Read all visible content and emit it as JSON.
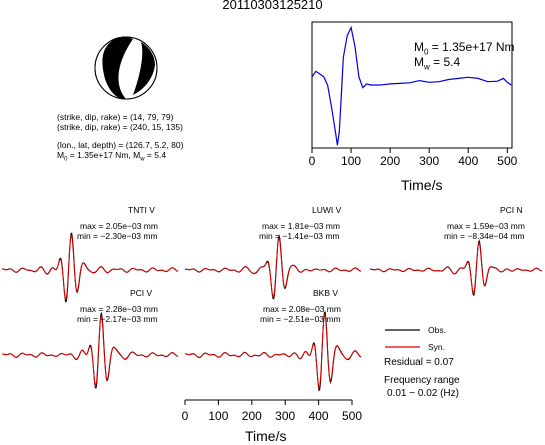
{
  "event_id": "20110303125210",
  "focal": {
    "plane1": "(strike, dip, rake) = (14, 79, 79)",
    "plane2": "(strike, dip, rake) = (240, 15, 135)",
    "location": "(lon., lat, depth) = (126.7, 5.2, 80)",
    "moment_line_pre": "M",
    "moment_line_sub0": "0",
    "moment_line_mid": " = 1.35e+17 Nm, M",
    "moment_line_subw": "w",
    "moment_line_post": " = 5.4"
  },
  "stf": {
    "m0_pre": "M",
    "m0_sub": "0",
    "m0_post": " = 1.35e+17 Nm",
    "mw_pre": "M",
    "mw_sub": "w",
    "mw_post": " = 5.4",
    "xlabel": "Time/s",
    "xticks": [
      0,
      100,
      200,
      300,
      400,
      500
    ],
    "color": "#0000dd"
  },
  "stations": [
    {
      "name": "TNTI V",
      "max": "max = 2.05e−03 mm",
      "min": "min = −2.30e−03 mm"
    },
    {
      "name": "LUWI V",
      "max": "max = 1.81e−03 mm",
      "min": "min = −1.41e−03 mm"
    },
    {
      "name": "PCI N",
      "max": "max = 1.59e−03 mm",
      "min": "min = −8.34e−04 mm"
    },
    {
      "name": "PCI V",
      "max": "max = 2.28e−03 mm",
      "min": "min = −2.17e−03 mm"
    },
    {
      "name": "BKB V",
      "max": "max = 2.08e−03 mm",
      "min": "min = −2.51e−03 mm"
    }
  ],
  "legend": {
    "obs": "Obs.",
    "syn": "Syn.",
    "residual": "Residual = 0.07",
    "freq_title": "Frequency range",
    "freq_range": "0.01 − 0.02 (Hz)",
    "obs_color": "#000000",
    "syn_color": "#dd0000"
  },
  "bottom_axis": {
    "xlabel": "Time/s",
    "xticks": [
      0,
      100,
      200,
      300,
      400,
      500
    ]
  },
  "chart_data": [
    {
      "type": "line",
      "title": "",
      "xlabel": "Time/s",
      "ylabel": "",
      "xlim": [
        0,
        512
      ],
      "grid": false,
      "series": [
        {
          "x": [
            0,
            10,
            20,
            30,
            40,
            50,
            60,
            65,
            70,
            75,
            80,
            90,
            100,
            110,
            120,
            130,
            140,
            150,
            175,
            200,
            225,
            250,
            275,
            300,
            325,
            350,
            375,
            400,
            425,
            450,
            475,
            490,
            500,
            510
          ],
          "values": [
            0.15,
            0.25,
            0.2,
            0.15,
            0.0,
            -0.4,
            -0.85,
            -1.1,
            -0.85,
            -0.2,
            0.5,
            0.9,
            1.05,
            0.7,
            0.15,
            -0.05,
            0.02,
            0.0,
            0.0,
            0.02,
            0.03,
            0.04,
            0.08,
            0.05,
            0.06,
            0.1,
            0.12,
            0.14,
            0.12,
            0.06,
            0.07,
            0.12,
            0.05,
            0.0
          ]
        }
      ]
    }
  ]
}
